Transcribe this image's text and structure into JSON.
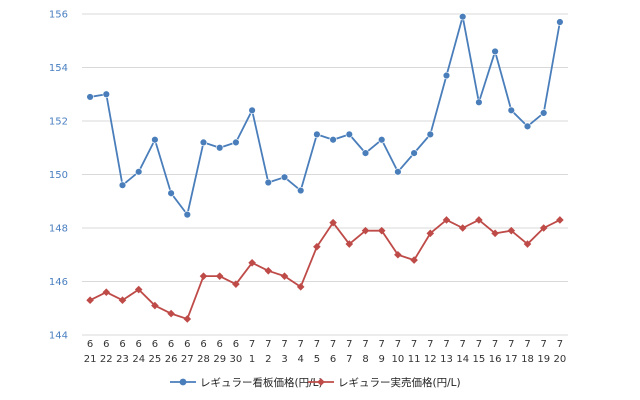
{
  "chart_data": {
    "type": "line",
    "title": "",
    "xlabel": "",
    "ylabel": "",
    "ylim": [
      144,
      156
    ],
    "yticks": [
      144,
      146,
      148,
      150,
      152,
      154,
      156
    ],
    "grid": true,
    "legend_position": "bottom",
    "categories": [
      {
        "month": "6",
        "day": "21"
      },
      {
        "month": "6",
        "day": "22"
      },
      {
        "month": "6",
        "day": "23"
      },
      {
        "month": "6",
        "day": "24"
      },
      {
        "month": "6",
        "day": "25"
      },
      {
        "month": "6",
        "day": "26"
      },
      {
        "month": "6",
        "day": "27"
      },
      {
        "month": "6",
        "day": "28"
      },
      {
        "month": "6",
        "day": "29"
      },
      {
        "month": "6",
        "day": "30"
      },
      {
        "month": "7",
        "day": "1"
      },
      {
        "month": "7",
        "day": "2"
      },
      {
        "month": "7",
        "day": "3"
      },
      {
        "month": "7",
        "day": "4"
      },
      {
        "month": "7",
        "day": "5"
      },
      {
        "month": "7",
        "day": "6"
      },
      {
        "month": "7",
        "day": "7"
      },
      {
        "month": "7",
        "day": "8"
      },
      {
        "month": "7",
        "day": "9"
      },
      {
        "month": "7",
        "day": "10"
      },
      {
        "month": "7",
        "day": "11"
      },
      {
        "month": "7",
        "day": "12"
      },
      {
        "month": "7",
        "day": "13"
      },
      {
        "month": "7",
        "day": "14"
      },
      {
        "month": "7",
        "day": "15"
      },
      {
        "month": "7",
        "day": "16"
      },
      {
        "month": "7",
        "day": "17"
      },
      {
        "month": "7",
        "day": "18"
      },
      {
        "month": "7",
        "day": "19"
      },
      {
        "month": "7",
        "day": "20"
      }
    ],
    "series": [
      {
        "name": "レギュラー看板価格(円/L)",
        "color": "#4a7ebb",
        "marker": "circle",
        "values": [
          152.9,
          153.0,
          149.6,
          150.1,
          151.3,
          149.3,
          148.5,
          151.2,
          151.0,
          151.2,
          152.4,
          149.7,
          149.9,
          149.4,
          151.5,
          151.3,
          151.5,
          150.8,
          151.3,
          150.1,
          150.8,
          151.5,
          153.7,
          155.9,
          152.7,
          154.6,
          152.4,
          151.8,
          152.3,
          155.7
        ]
      },
      {
        "name": "レギュラー実売価格(円/L)",
        "color": "#be4b48",
        "marker": "diamond",
        "values": [
          145.3,
          145.6,
          145.3,
          145.7,
          145.1,
          144.8,
          144.6,
          146.2,
          146.2,
          145.9,
          146.7,
          146.4,
          146.2,
          145.8,
          147.3,
          148.2,
          147.4,
          147.9,
          147.9,
          147.0,
          146.8,
          147.8,
          148.3,
          148.0,
          148.3,
          147.8,
          147.9,
          147.4,
          148.0,
          148.3
        ]
      }
    ]
  }
}
